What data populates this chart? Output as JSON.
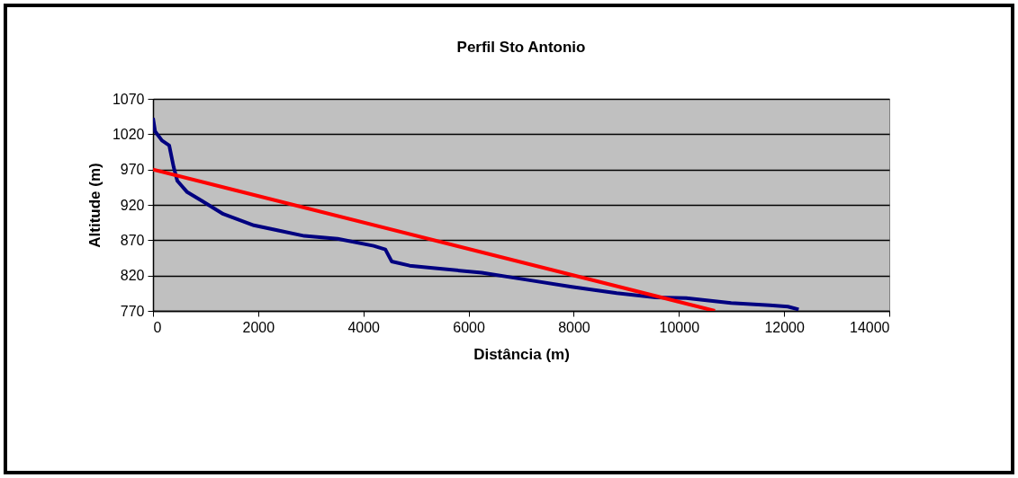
{
  "chart_data": {
    "type": "line",
    "title": "Perfil Sto Antonio",
    "xlabel": "Distância (m)",
    "ylabel": "Altitude (m)",
    "xlim": [
      0,
      14000
    ],
    "xticks": [
      0,
      2000,
      4000,
      6000,
      8000,
      10000,
      12000,
      14000
    ],
    "ylim": [
      770,
      1070
    ],
    "yticks": [
      770,
      820,
      870,
      920,
      970,
      1020,
      1070
    ],
    "grid": "y",
    "marker": "none",
    "line_style": "solid",
    "series": [
      {
        "color": "#000080",
        "x": [
          0,
          40,
          170,
          308,
          394,
          462,
          650,
          942,
          1336,
          1918,
          2363,
          2877,
          3510,
          4195,
          4418,
          4538,
          4880,
          5274,
          6250,
          7106,
          7962,
          8818,
          9555,
          10137,
          10993,
          11729,
          12072,
          12277
        ],
        "values": [
          1043,
          1024,
          1011,
          1004,
          973,
          954,
          938,
          925,
          907,
          891,
          884,
          876,
          872,
          862,
          857,
          840,
          834,
          831,
          824,
          814,
          804,
          795,
          789,
          788,
          781,
          778,
          776,
          772
        ]
      },
      {
        "color": "#ff0000",
        "x": [
          0,
          10685
        ],
        "values": [
          970,
          770
        ]
      }
    ]
  }
}
